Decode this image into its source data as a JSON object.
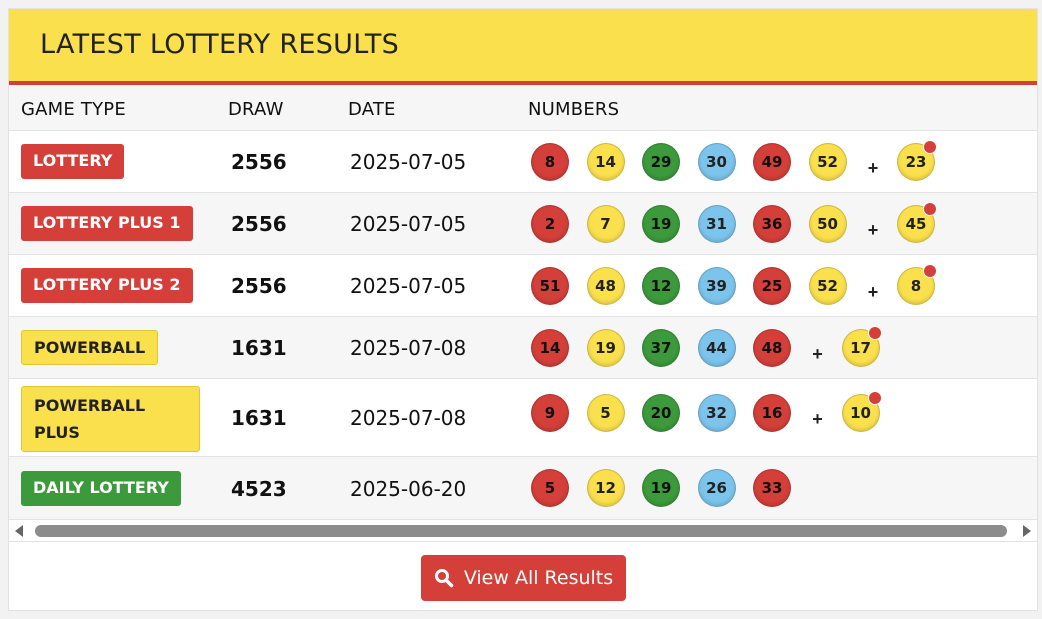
{
  "title": "LATEST LOTTERY RESULTS",
  "columns": {
    "game_type": "GAME TYPE",
    "draw": "DRAW",
    "date": "DATE",
    "numbers": "NUMBERS"
  },
  "plus_sign": "+",
  "rows": [
    {
      "game": "LOTTERY",
      "badge_color": "red",
      "draw": "2556",
      "date": "2025-07-05",
      "balls": [
        {
          "n": "8",
          "color": "red"
        },
        {
          "n": "14",
          "color": "yellow"
        },
        {
          "n": "29",
          "color": "green"
        },
        {
          "n": "30",
          "color": "blue"
        },
        {
          "n": "49",
          "color": "red"
        },
        {
          "n": "52",
          "color": "yellow"
        }
      ],
      "bonus": "23"
    },
    {
      "game": "LOTTERY PLUS 1",
      "badge_color": "red",
      "draw": "2556",
      "date": "2025-07-05",
      "balls": [
        {
          "n": "2",
          "color": "red"
        },
        {
          "n": "7",
          "color": "yellow"
        },
        {
          "n": "19",
          "color": "green"
        },
        {
          "n": "31",
          "color": "blue"
        },
        {
          "n": "36",
          "color": "red"
        },
        {
          "n": "50",
          "color": "yellow"
        }
      ],
      "bonus": "45"
    },
    {
      "game": "LOTTERY PLUS 2",
      "badge_color": "red",
      "draw": "2556",
      "date": "2025-07-05",
      "balls": [
        {
          "n": "51",
          "color": "red"
        },
        {
          "n": "48",
          "color": "yellow"
        },
        {
          "n": "12",
          "color": "green"
        },
        {
          "n": "39",
          "color": "blue"
        },
        {
          "n": "25",
          "color": "red"
        },
        {
          "n": "52",
          "color": "yellow"
        }
      ],
      "bonus": "8"
    },
    {
      "game": "POWERBALL",
      "badge_color": "yellow",
      "draw": "1631",
      "date": "2025-07-08",
      "balls": [
        {
          "n": "14",
          "color": "red"
        },
        {
          "n": "19",
          "color": "yellow"
        },
        {
          "n": "37",
          "color": "green"
        },
        {
          "n": "44",
          "color": "blue"
        },
        {
          "n": "48",
          "color": "red"
        }
      ],
      "bonus": "17"
    },
    {
      "game": "POWERBALL PLUS",
      "badge_color": "yellow",
      "draw": "1631",
      "date": "2025-07-08",
      "balls": [
        {
          "n": "9",
          "color": "red"
        },
        {
          "n": "5",
          "color": "yellow"
        },
        {
          "n": "20",
          "color": "green"
        },
        {
          "n": "32",
          "color": "blue"
        },
        {
          "n": "16",
          "color": "red"
        }
      ],
      "bonus": "10"
    },
    {
      "game": "DAILY LOTTERY",
      "badge_color": "green",
      "draw": "4523",
      "date": "2025-06-20",
      "balls": [
        {
          "n": "5",
          "color": "red"
        },
        {
          "n": "12",
          "color": "yellow"
        },
        {
          "n": "19",
          "color": "green"
        },
        {
          "n": "26",
          "color": "blue"
        },
        {
          "n": "33",
          "color": "red"
        }
      ],
      "bonus": ""
    }
  ],
  "view_all_button": "View All Results",
  "icons": {
    "button_icon": "search-icon",
    "scroll_left": "scroll-left-arrow-icon",
    "scroll_right": "scroll-right-arrow-icon"
  },
  "colors": {
    "header_bg": "#fbe04d",
    "accent_red": "#d43f3a",
    "ball_yellow": "#fbe04d",
    "ball_green": "#3c9a3c",
    "ball_blue": "#7cc4ec"
  }
}
